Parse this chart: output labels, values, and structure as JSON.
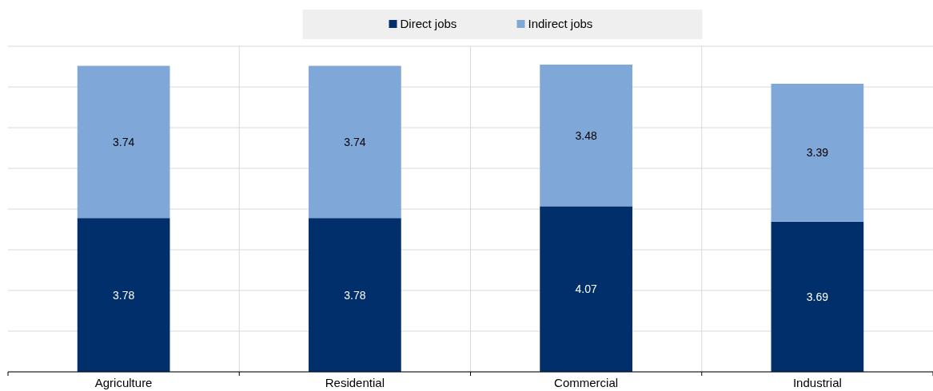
{
  "chart_data": {
    "type": "bar",
    "stacked": true,
    "categories": [
      "Agriculture",
      "Residential",
      "Commercial",
      "Industrial"
    ],
    "series": [
      {
        "name": "Direct jobs",
        "color": "#002f6c",
        "values": [
          3.78,
          3.78,
          4.07,
          3.69
        ]
      },
      {
        "name": "Indirect jobs",
        "color": "#7fa8d9",
        "values": [
          3.74,
          3.74,
          3.48,
          3.39
        ]
      }
    ],
    "ylim": [
      0,
      8
    ],
    "yticks": [
      {
        "value": 0,
        "label": null
      },
      {
        "value": 1,
        "label": null
      },
      {
        "value": 2,
        "label": null
      },
      {
        "value": 3,
        "label": null
      },
      {
        "value": 4,
        "label": null
      },
      {
        "value": 5,
        "label": null
      },
      {
        "value": 6,
        "label": null
      },
      {
        "value": 7,
        "label": null
      },
      {
        "value": 8,
        "label": null
      }
    ],
    "grid": true,
    "legend": "top",
    "data_labels": true,
    "tick_labels": "x"
  }
}
